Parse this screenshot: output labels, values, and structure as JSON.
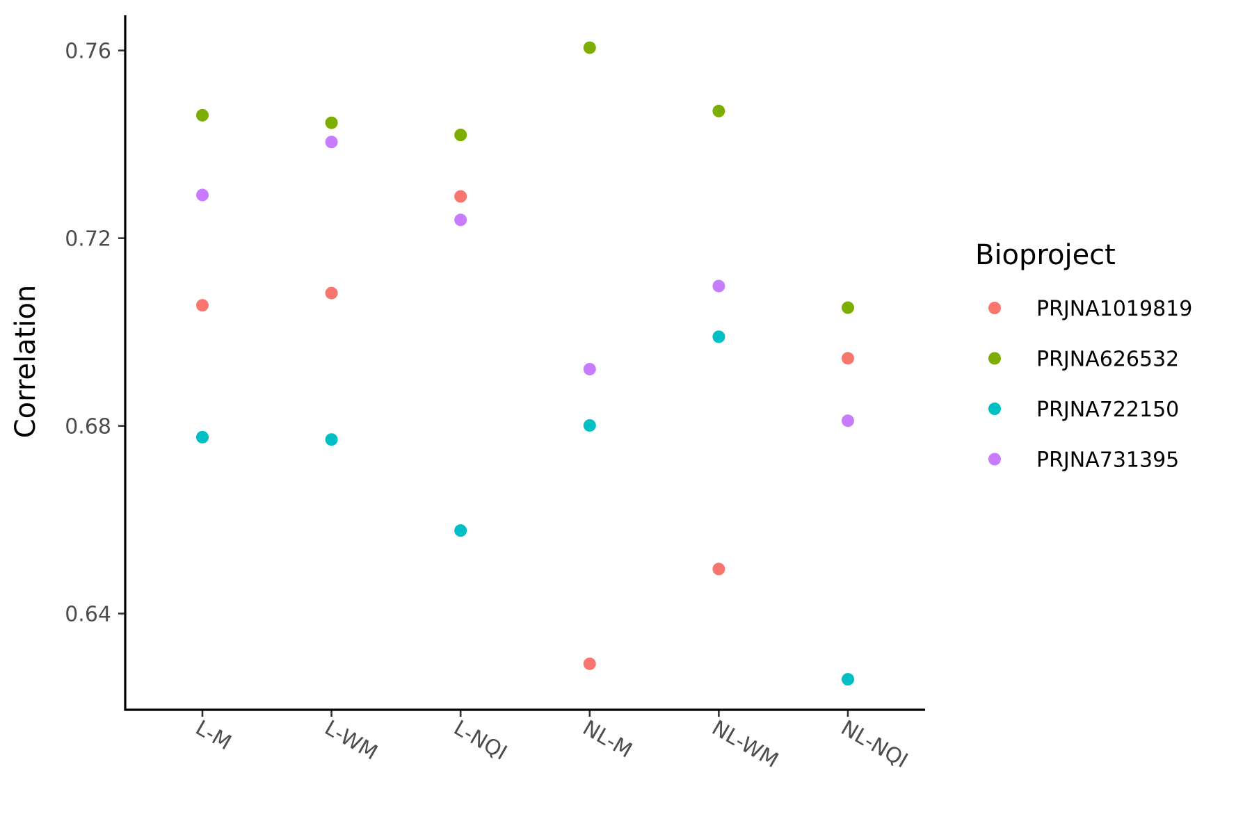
{
  "chart_data": {
    "type": "scatter",
    "title": "",
    "xlabel": "",
    "ylabel": "Correlation",
    "categories": [
      "L-M",
      "L-WM",
      "L-NQI",
      "NL-M",
      "NL-WM",
      "NL-NQI"
    ],
    "y_ticks": [
      0.64,
      0.68,
      0.72,
      0.76
    ],
    "y_tick_labels": [
      "0.64",
      "0.68",
      "0.72",
      "0.76"
    ],
    "ylim": [
      0.6195,
      0.7675
    ],
    "grid": false,
    "legend": {
      "title": "Bioproject",
      "position": "right"
    },
    "series": [
      {
        "name": "PRJNA1019819",
        "color": "#F8766D",
        "values": [
          0.7057,
          0.7083,
          0.7289,
          0.6293,
          0.6495,
          0.6944
        ]
      },
      {
        "name": "PRJNA626532",
        "color": "#7CAE00",
        "values": [
          0.7462,
          0.7446,
          0.742,
          0.7606,
          0.7471,
          0.7052
        ]
      },
      {
        "name": "PRJNA722150",
        "color": "#00BFC4",
        "values": [
          0.6776,
          0.6771,
          0.6577,
          0.6801,
          0.699,
          0.626
        ]
      },
      {
        "name": "PRJNA731395",
        "color": "#C77CFF",
        "values": [
          0.7292,
          0.7405,
          0.7239,
          0.6921,
          0.7098,
          0.6811
        ]
      }
    ]
  }
}
